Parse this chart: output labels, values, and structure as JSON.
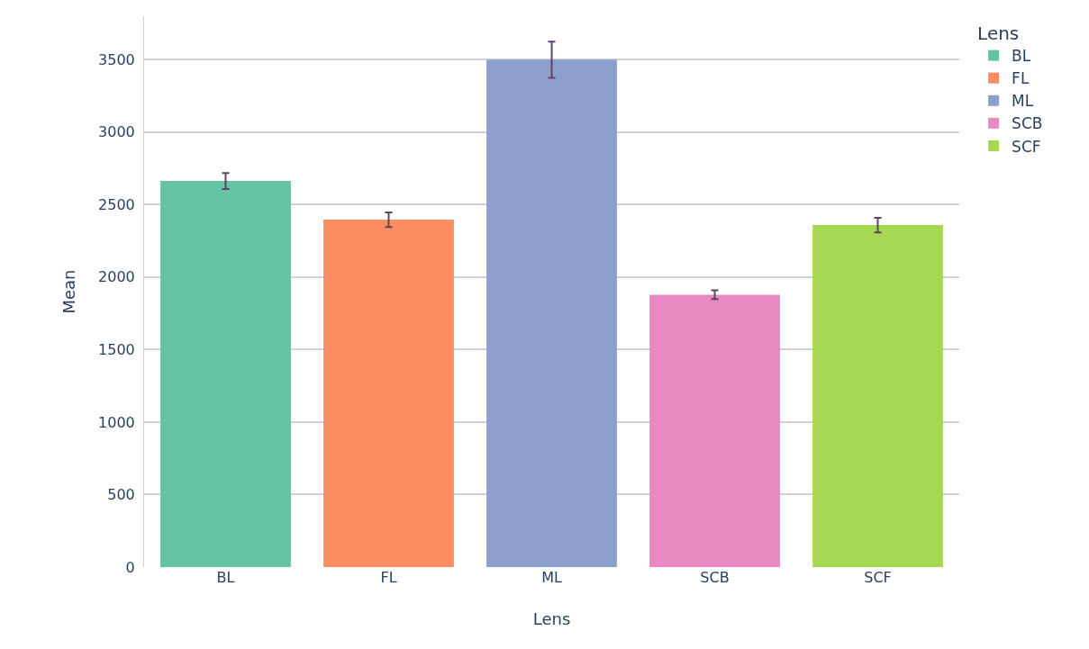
{
  "chart_data": {
    "type": "bar",
    "xlabel": "Lens",
    "ylabel": "Mean",
    "legend_title": "Lens",
    "categories": [
      "BL",
      "FL",
      "ML",
      "SCB",
      "SCF"
    ],
    "series": [
      {
        "name": "BL",
        "color": "#66c2a5",
        "values": [
          2663,
          null,
          null,
          null,
          null
        ],
        "errors": [
          55,
          null,
          null,
          null,
          null
        ]
      },
      {
        "name": "FL",
        "color": "#fc8d62",
        "values": [
          null,
          2396,
          null,
          null,
          null
        ],
        "errors": [
          null,
          50,
          null,
          null,
          null
        ]
      },
      {
        "name": "ML",
        "color": "#8da0cb",
        "values": [
          null,
          null,
          3500,
          null,
          null
        ],
        "errors": [
          null,
          null,
          125,
          null,
          null
        ]
      },
      {
        "name": "SCB",
        "color": "#e78ac3",
        "values": [
          null,
          null,
          null,
          1879,
          null
        ],
        "errors": [
          null,
          null,
          null,
          30,
          null
        ]
      },
      {
        "name": "SCF",
        "color": "#a6d854",
        "values": [
          null,
          null,
          null,
          null,
          2359
        ],
        "errors": [
          null,
          null,
          null,
          null,
          50
        ]
      }
    ],
    "ylim": [
      0,
      3800
    ],
    "yticks": [
      0,
      500,
      1000,
      1500,
      2000,
      2500,
      3000,
      3500
    ],
    "grid": "y",
    "legend": "top right"
  }
}
